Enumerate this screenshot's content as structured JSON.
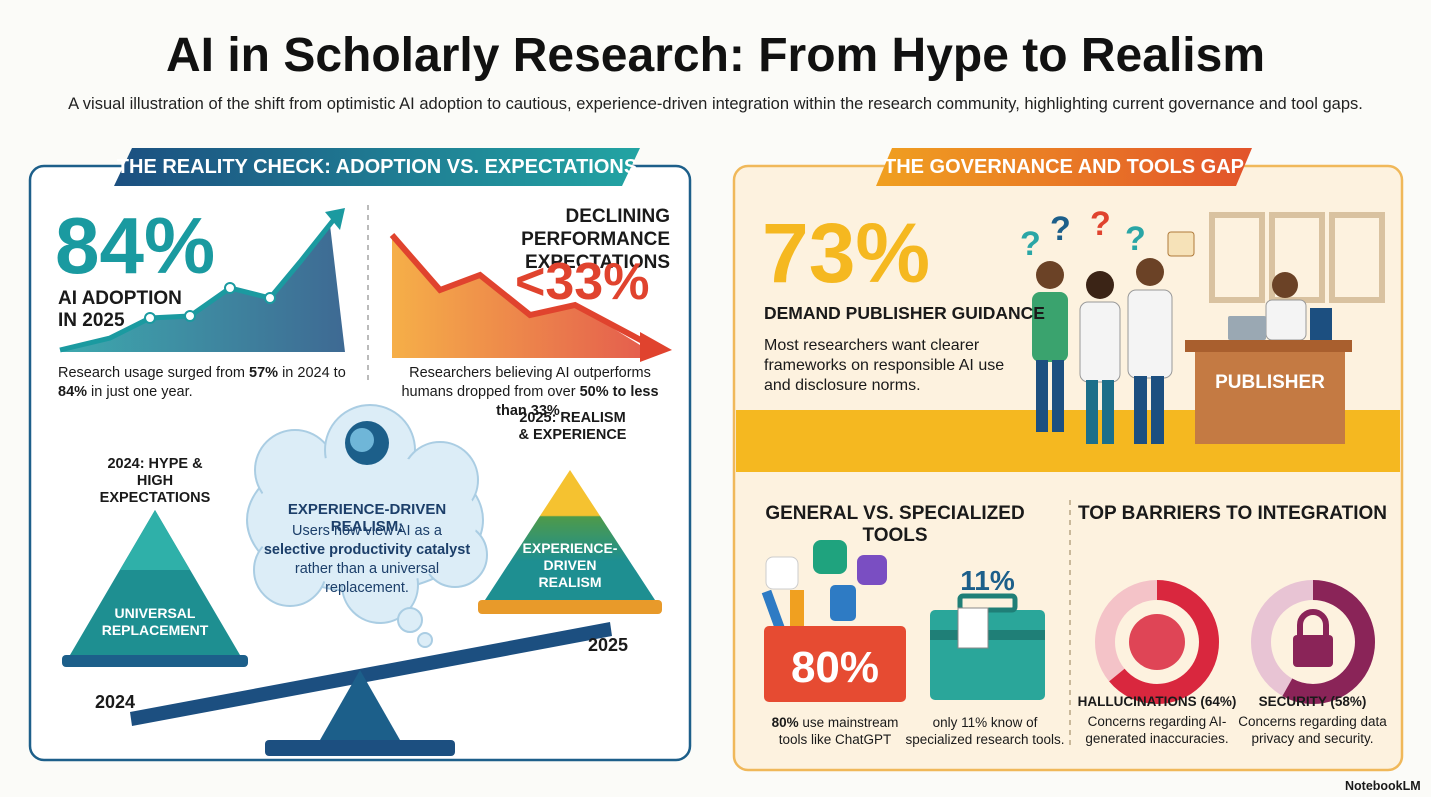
{
  "header": {
    "title": "AI in Scholarly Research: From Hype to Realism",
    "subtitle": "A visual illustration of the shift from optimistic AI adoption to cautious, experience-driven integration within the research community, highlighting current governance and tool gaps."
  },
  "left_panel": {
    "heading": "THE REALITY CHECK: ADOPTION VS. EXPECTATIONS",
    "adoption": {
      "stat": "84%",
      "label": "AI ADOPTION IN 2025",
      "description": [
        "Research usage surged from ",
        "57%",
        " in 2024 to ",
        "84%",
        " in just one year."
      ]
    },
    "expectations": {
      "label": "DECLINING PERFORMANCE EXPECTATIONS",
      "stat": "<33%",
      "description": [
        "Researchers believing AI outperforms humans dropped from over ",
        "50% to less than 33%",
        "."
      ]
    },
    "hype": {
      "label": "2024: HYPE & HIGH EXPECTATIONS",
      "pyramid": "UNIVERSAL REPLACEMENT",
      "year": "2024"
    },
    "thought": {
      "heading": "EXPERIENCE-DRIVEN REALISM:",
      "text": [
        "Users now view AI as a ",
        "selective productivity catalyst",
        " rather than a universal replacement."
      ]
    },
    "realism": {
      "label": "2025: REALISM & EXPERIENCE",
      "pyramid": "EXPERIENCE-DRIVEN REALISM",
      "year": "2025"
    }
  },
  "right_panel": {
    "heading": "THE GOVERNANCE AND TOOLS GAP",
    "guidance": {
      "stat": "73%",
      "label": "DEMAND PUBLISHER GUIDANCE",
      "description": "Most researchers want clearer frameworks on responsible AI use and disclosure norms.",
      "desk": "PUBLISHER"
    },
    "tools": {
      "heading": "GENERAL VS. SPECIALIZED TOOLS",
      "general_stat": "80%",
      "special_stat": "11%",
      "general_text": [
        "80%",
        " use mainstream tools like ChatGPT"
      ],
      "special_text": "only 11% know of specialized research tools."
    },
    "barriers": {
      "heading": "TOP BARRIERS TO INTEGRATION",
      "items": [
        {
          "title": "HALLUCINATIONS (64%)",
          "text": "Concerns regarding AI-generated inaccuracies."
        },
        {
          "title": "SECURITY (58%)",
          "text": "Concerns regarding data privacy and security."
        }
      ]
    }
  },
  "footer": "NotebookLM"
}
